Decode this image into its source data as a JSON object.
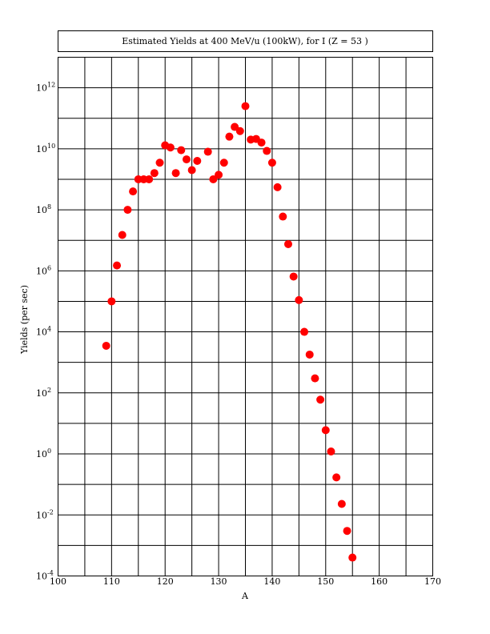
{
  "chart_data": {
    "type": "scatter",
    "title": "Estimated Yields at 400 MeV/u (100kW), for I (Z = 53 )",
    "xlabel": "A",
    "ylabel": "Yields (per sec)",
    "xlim": [
      100,
      170
    ],
    "ylim_log10": [
      -4,
      13
    ],
    "y_scale": "log",
    "grid": true,
    "marker_color": "#ff0000",
    "x_ticks": [
      {
        "value": 100,
        "label": "100"
      },
      {
        "value": 110,
        "label": "110"
      },
      {
        "value": 120,
        "label": "120"
      },
      {
        "value": 130,
        "label": "130"
      },
      {
        "value": 140,
        "label": "140"
      },
      {
        "value": 150,
        "label": "150"
      },
      {
        "value": 160,
        "label": "160"
      },
      {
        "value": 170,
        "label": "170"
      }
    ],
    "y_ticks": [
      {
        "exp": -4,
        "base": "10",
        "sup": "-4"
      },
      {
        "exp": -2,
        "base": "10",
        "sup": "-2"
      },
      {
        "exp": 0,
        "base": "10",
        "sup": "0"
      },
      {
        "exp": 2,
        "base": "10",
        "sup": "2"
      },
      {
        "exp": 4,
        "base": "10",
        "sup": "4"
      },
      {
        "exp": 6,
        "base": "10",
        "sup": "6"
      },
      {
        "exp": 8,
        "base": "10",
        "sup": "8"
      },
      {
        "exp": 10,
        "base": "10",
        "sup": "10"
      },
      {
        "exp": 12,
        "base": "10",
        "sup": "12"
      }
    ],
    "series": [
      {
        "x": [
          109,
          110,
          111,
          112,
          113,
          114,
          115,
          116,
          117,
          118,
          119,
          120,
          121,
          122,
          123,
          124,
          125,
          126,
          128,
          129,
          130,
          131,
          132,
          133,
          134,
          135,
          136,
          137,
          138,
          139,
          140,
          141,
          142,
          143,
          144,
          145,
          146,
          147,
          148,
          149,
          150,
          151,
          152,
          153,
          154,
          155
        ],
        "y": [
          3500.0,
          100000.0,
          1500000.0,
          15000000.0,
          100000000.0,
          400000000.0,
          1000000000.0,
          1000000000.0,
          1000000000.0,
          1600000000.0,
          3500000000.0,
          13000000000.0,
          11000000000.0,
          1600000000.0,
          9000000000.0,
          4500000000.0,
          2000000000.0,
          4000000000.0,
          8000000000.0,
          1000000000.0,
          1400000000.0,
          3500000000.0,
          25000000000.0,
          52000000000.0,
          38000000000.0,
          250000000000.0,
          20000000000.0,
          21000000000.0,
          16000000000.0,
          8500000000.0,
          3500000000.0,
          550000000.0,
          60000000.0,
          7500000.0,
          650000.0,
          110000.0,
          10000.0,
          1800.0,
          300.0,
          60.0,
          6,
          1.2,
          0.17,
          0.023,
          0.003,
          0.0004
        ]
      }
    ]
  }
}
